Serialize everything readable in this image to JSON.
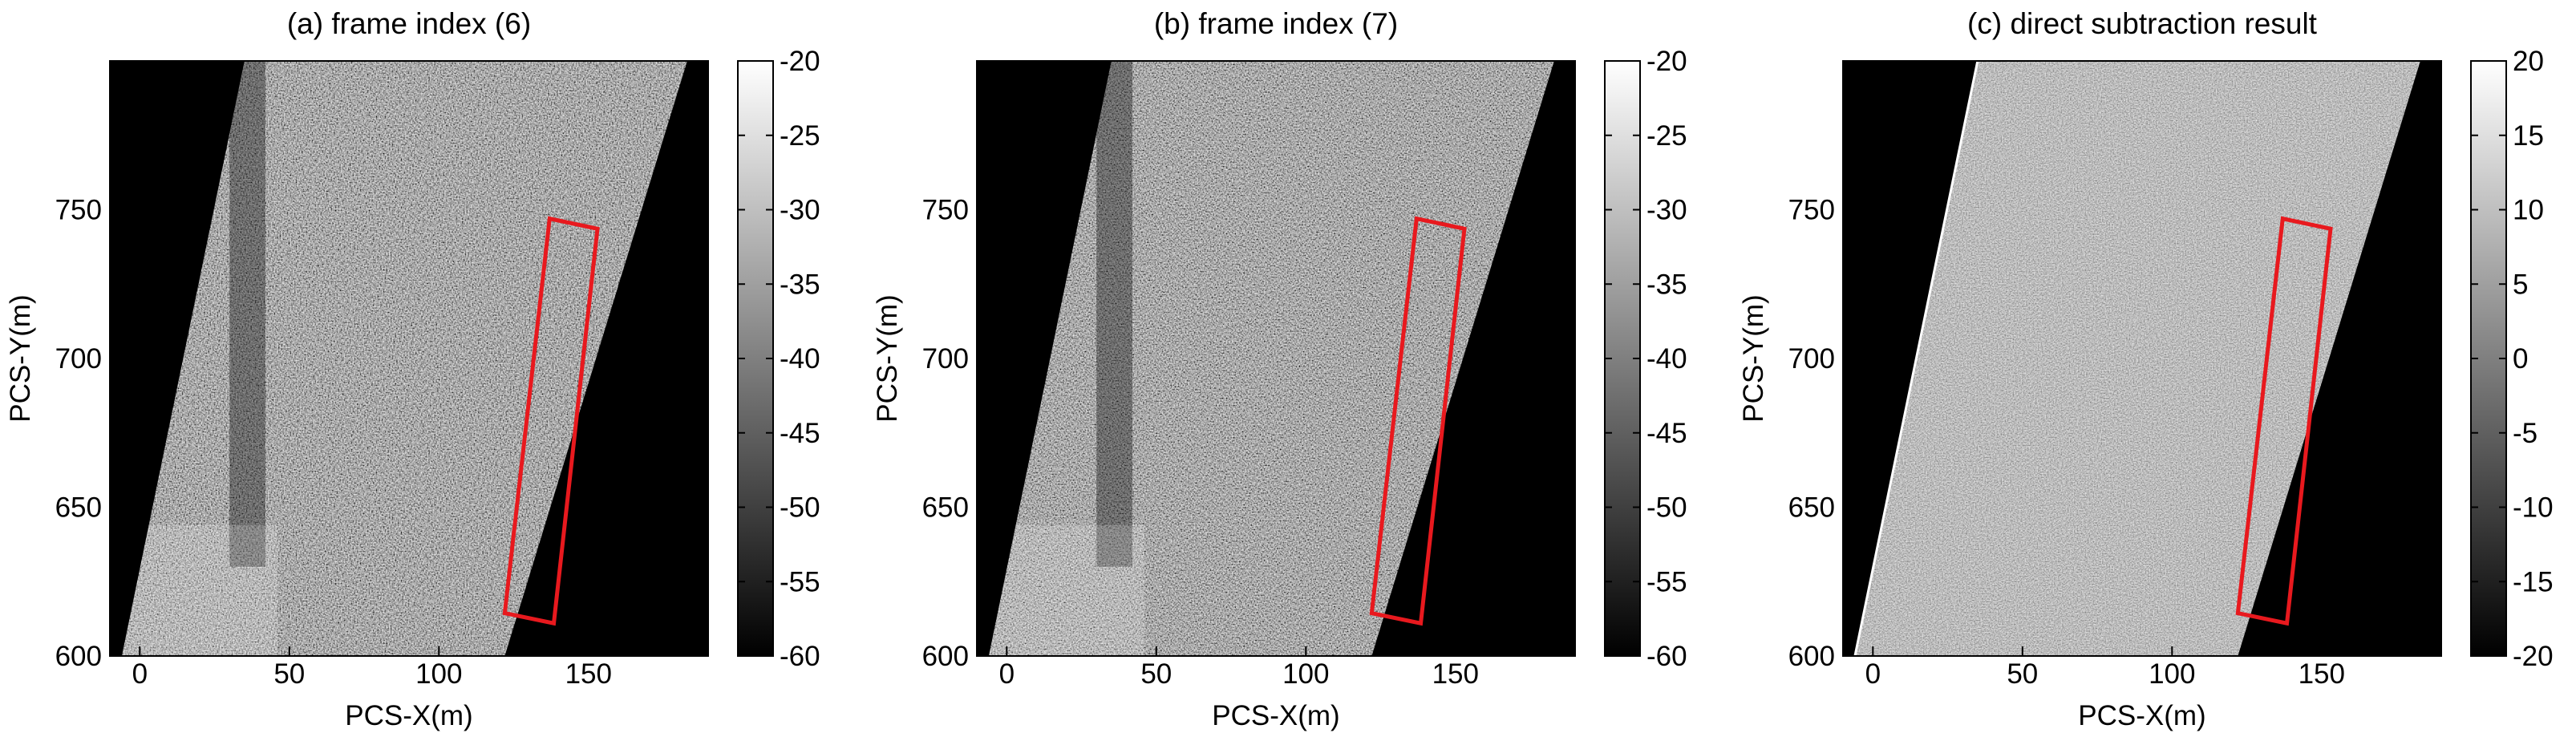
{
  "chart_data": [
    {
      "type": "image",
      "title": "(a) frame index (6)",
      "x_label": "PCS-X(m)",
      "y_label": "PCS-Y(m)",
      "xlim": [
        -10,
        190
      ],
      "ylim": [
        600,
        800
      ],
      "xticks": [
        0,
        50,
        100,
        150
      ],
      "yticks": [
        600,
        650,
        700,
        750
      ],
      "colorbar": {
        "lim": [
          -60,
          -20
        ],
        "ticks": [
          -20,
          -25,
          -30,
          -35,
          -40,
          -45,
          -50,
          -55,
          -60
        ]
      }
    },
    {
      "type": "image",
      "title": "(b) frame index (7)",
      "x_label": "PCS-X(m)",
      "y_label": "PCS-Y(m)",
      "xlim": [
        -10,
        190
      ],
      "ylim": [
        600,
        800
      ],
      "xticks": [
        0,
        50,
        100,
        150
      ],
      "yticks": [
        600,
        650,
        700,
        750
      ],
      "colorbar": {
        "lim": [
          -60,
          -20
        ],
        "ticks": [
          -20,
          -25,
          -30,
          -35,
          -40,
          -45,
          -50,
          -55,
          -60
        ]
      }
    },
    {
      "type": "image",
      "title": "(c) direct subtraction result",
      "x_label": "PCS-X(m)",
      "y_label": "PCS-Y(m)",
      "xlim": [
        -10,
        190
      ],
      "ylim": [
        600,
        800
      ],
      "xticks": [
        0,
        50,
        100,
        150
      ],
      "yticks": [
        600,
        650,
        700,
        750
      ],
      "colorbar": {
        "lim": [
          -20,
          20
        ],
        "ticks": [
          20,
          15,
          10,
          5,
          0,
          -5,
          -10,
          -15,
          -20
        ]
      }
    }
  ]
}
